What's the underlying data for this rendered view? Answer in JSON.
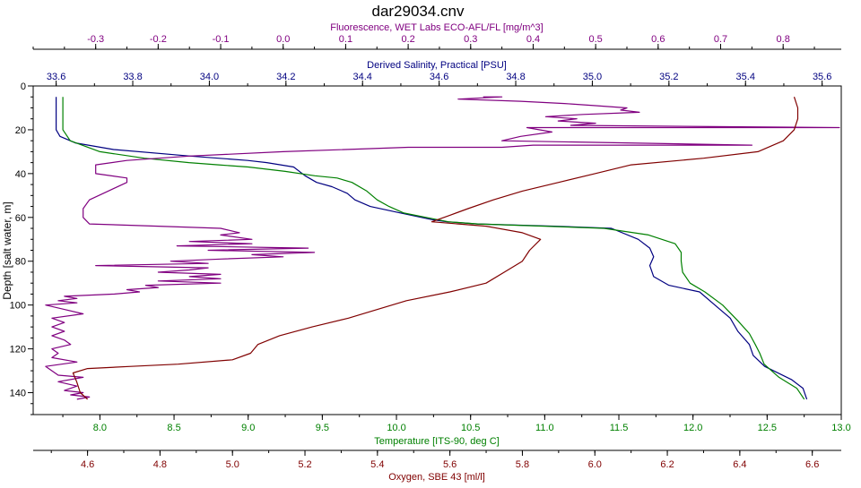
{
  "chart_data": {
    "type": "line",
    "title": "dar29034.cnv",
    "ylabel": "Depth [salt water, m]",
    "y_reversed": true,
    "ylim": [
      0,
      150
    ],
    "y_ticks": [
      0,
      20,
      40,
      60,
      80,
      100,
      120,
      140
    ],
    "grid": false,
    "axes": [
      {
        "id": "fluor",
        "position": "top-1",
        "label": "Fluorescence, WET Labs ECO-AFL/FL [mg/m^3]",
        "color": "#800080",
        "range": [
          -0.4,
          0.893
        ],
        "ticks": [
          -0.3,
          -0.2,
          -0.1,
          0.0,
          0.1,
          0.2,
          0.3,
          0.4,
          0.5,
          0.6,
          0.7,
          0.8
        ],
        "tick_labels": [
          "-0.3",
          "-0.2",
          "-0.1",
          "0.0",
          "0.1",
          "0.2",
          "0.3",
          "0.4",
          "0.5",
          "0.6",
          "0.7",
          "0.8"
        ]
      },
      {
        "id": "sal",
        "position": "top-2",
        "label": "Derived Salinity, Practical [PSU]",
        "color": "#000080",
        "range": [
          33.54,
          35.65
        ],
        "ticks": [
          33.6,
          33.8,
          34.0,
          34.2,
          34.4,
          34.6,
          34.8,
          35.0,
          35.2,
          35.4,
          35.6
        ],
        "tick_labels": [
          "33.6",
          "33.8",
          "34.0",
          "34.2",
          "34.4",
          "34.6",
          "34.8",
          "35.0",
          "35.2",
          "35.4",
          "35.6"
        ]
      },
      {
        "id": "temp",
        "position": "bottom-1",
        "label": "Temperature [ITS-90, deg C]",
        "color": "#008000",
        "range": [
          7.55,
          13.0
        ],
        "ticks": [
          8.0,
          8.5,
          9.0,
          9.5,
          10.0,
          10.5,
          11.0,
          11.5,
          12.0,
          12.5,
          13.0
        ],
        "tick_labels": [
          "8.0",
          "8.5",
          "9.0",
          "9.5",
          "10.0",
          "10.5",
          "11.0",
          "11.5",
          "12.0",
          "12.5",
          "13.0"
        ]
      },
      {
        "id": "oxy",
        "position": "bottom-2",
        "label": "Oxygen, SBE 43 [ml/l]",
        "color": "#800000",
        "range": [
          4.45,
          6.68
        ],
        "ticks": [
          4.6,
          4.8,
          5.0,
          5.2,
          5.4,
          5.6,
          5.8,
          6.0,
          6.2,
          6.4,
          6.6
        ],
        "tick_labels": [
          "4.6",
          "4.8",
          "5.0",
          "5.2",
          "5.4",
          "5.6",
          "5.8",
          "6.0",
          "6.2",
          "6.4",
          "6.6"
        ]
      }
    ],
    "series": [
      {
        "name": "Derived Salinity, Practical [PSU]",
        "axis": "sal",
        "color": "#000080",
        "points": [
          [
            33.6,
            5
          ],
          [
            33.6,
            20
          ],
          [
            33.61,
            23
          ],
          [
            33.65,
            26
          ],
          [
            33.75,
            29
          ],
          [
            33.95,
            32
          ],
          [
            34.1,
            34
          ],
          [
            34.15,
            35
          ],
          [
            34.22,
            37
          ],
          [
            34.25,
            41
          ],
          [
            34.28,
            44
          ],
          [
            34.32,
            46
          ],
          [
            34.36,
            49
          ],
          [
            34.38,
            52
          ],
          [
            34.42,
            55
          ],
          [
            34.5,
            58
          ],
          [
            34.58,
            61
          ],
          [
            34.62,
            62
          ],
          [
            34.7,
            63
          ],
          [
            34.9,
            64
          ],
          [
            35.05,
            65
          ],
          [
            35.12,
            70
          ],
          [
            35.15,
            74
          ],
          [
            35.16,
            78
          ],
          [
            35.15,
            82
          ],
          [
            35.16,
            87
          ],
          [
            35.2,
            91
          ],
          [
            35.28,
            94
          ],
          [
            35.32,
            100
          ],
          [
            35.36,
            106
          ],
          [
            35.38,
            112
          ],
          [
            35.41,
            118
          ],
          [
            35.42,
            123
          ],
          [
            35.45,
            128
          ],
          [
            35.52,
            134
          ],
          [
            35.55,
            138
          ],
          [
            35.56,
            143
          ]
        ]
      },
      {
        "name": "Temperature [ITS-90, deg C]",
        "axis": "temp",
        "color": "#008000",
        "points": [
          [
            7.75,
            5
          ],
          [
            7.75,
            20
          ],
          [
            7.8,
            25
          ],
          [
            8.0,
            30
          ],
          [
            8.3,
            33
          ],
          [
            8.6,
            35
          ],
          [
            8.8,
            36
          ],
          [
            9.0,
            37
          ],
          [
            9.25,
            39
          ],
          [
            9.45,
            41
          ],
          [
            9.6,
            42
          ],
          [
            9.7,
            44
          ],
          [
            9.8,
            48
          ],
          [
            9.87,
            52
          ],
          [
            9.95,
            55
          ],
          [
            10.05,
            58
          ],
          [
            10.2,
            60
          ],
          [
            10.35,
            62
          ],
          [
            10.55,
            63
          ],
          [
            11.0,
            64
          ],
          [
            11.4,
            65
          ],
          [
            11.7,
            68
          ],
          [
            11.88,
            72
          ],
          [
            11.92,
            76
          ],
          [
            11.92,
            80
          ],
          [
            11.93,
            85
          ],
          [
            11.98,
            90
          ],
          [
            12.08,
            94
          ],
          [
            12.2,
            100
          ],
          [
            12.3,
            107
          ],
          [
            12.38,
            113
          ],
          [
            12.42,
            118
          ],
          [
            12.45,
            122
          ],
          [
            12.48,
            127
          ],
          [
            12.58,
            133
          ],
          [
            12.7,
            138
          ],
          [
            12.75,
            143
          ]
        ]
      },
      {
        "name": "Fluorescence, WET Labs ECO-AFL/FL [mg/m^3]",
        "axis": "fluor",
        "color": "#800080",
        "points": [
          [
            0.32,
            5
          ],
          [
            0.35,
            5
          ],
          [
            0.28,
            6
          ],
          [
            0.38,
            7
          ],
          [
            0.45,
            8
          ],
          [
            0.5,
            9
          ],
          [
            0.55,
            10
          ],
          [
            0.54,
            11
          ],
          [
            0.57,
            12
          ],
          [
            0.48,
            13
          ],
          [
            0.42,
            14
          ],
          [
            0.47,
            15
          ],
          [
            0.44,
            16
          ],
          [
            0.5,
            17
          ],
          [
            0.46,
            18
          ],
          [
            0.89,
            19
          ],
          [
            0.39,
            19
          ],
          [
            0.43,
            21
          ],
          [
            0.38,
            23
          ],
          [
            0.35,
            25
          ],
          [
            0.75,
            27
          ],
          [
            0.4,
            27
          ],
          [
            0.35,
            28
          ],
          [
            0.2,
            28
          ],
          [
            0.0,
            30
          ],
          [
            -0.15,
            32
          ],
          [
            -0.25,
            34
          ],
          [
            -0.3,
            36
          ],
          [
            -0.3,
            38
          ],
          [
            -0.3,
            40
          ],
          [
            -0.25,
            42
          ],
          [
            -0.25,
            44
          ],
          [
            -0.28,
            48
          ],
          [
            -0.31,
            52
          ],
          [
            -0.32,
            56
          ],
          [
            -0.32,
            60
          ],
          [
            -0.31,
            63
          ],
          [
            -0.2,
            64
          ],
          [
            -0.1,
            65
          ],
          [
            -0.07,
            67
          ],
          [
            -0.1,
            68
          ],
          [
            -0.05,
            70
          ],
          [
            -0.15,
            71
          ],
          [
            -0.05,
            72
          ],
          [
            -0.17,
            73
          ],
          [
            0.04,
            74
          ],
          [
            -0.12,
            75
          ],
          [
            0.05,
            76
          ],
          [
            -0.05,
            77
          ],
          [
            0.0,
            78
          ],
          [
            -0.1,
            79
          ],
          [
            -0.18,
            80
          ],
          [
            -0.12,
            81
          ],
          [
            -0.3,
            82
          ],
          [
            -0.12,
            83
          ],
          [
            -0.15,
            84
          ],
          [
            -0.2,
            85
          ],
          [
            -0.1,
            86
          ],
          [
            -0.15,
            87
          ],
          [
            -0.1,
            88
          ],
          [
            -0.2,
            89
          ],
          [
            -0.1,
            90
          ],
          [
            -0.22,
            91
          ],
          [
            -0.2,
            92
          ],
          [
            -0.25,
            93
          ],
          [
            -0.23,
            94
          ],
          [
            -0.27,
            95
          ],
          [
            -0.35,
            96
          ],
          [
            -0.33,
            97
          ],
          [
            -0.36,
            98
          ],
          [
            -0.33,
            99
          ],
          [
            -0.38,
            100
          ],
          [
            -0.35,
            102
          ],
          [
            -0.32,
            104
          ],
          [
            -0.37,
            106
          ],
          [
            -0.35,
            108
          ],
          [
            -0.37,
            110
          ],
          [
            -0.35,
            112
          ],
          [
            -0.37,
            114
          ],
          [
            -0.35,
            116
          ],
          [
            -0.34,
            118
          ],
          [
            -0.37,
            120
          ],
          [
            -0.36,
            122
          ],
          [
            -0.37,
            124
          ],
          [
            -0.33,
            126
          ],
          [
            -0.38,
            128
          ],
          [
            -0.37,
            130
          ],
          [
            -0.36,
            132
          ],
          [
            -0.32,
            133
          ],
          [
            -0.36,
            135
          ],
          [
            -0.33,
            137
          ],
          [
            -0.35,
            139
          ],
          [
            -0.32,
            140
          ],
          [
            -0.34,
            141
          ],
          [
            -0.31,
            142
          ],
          [
            -0.33,
            143
          ]
        ]
      },
      {
        "name": "Oxygen, SBE 43 [ml/l]",
        "axis": "oxy",
        "color": "#800000",
        "points": [
          [
            6.55,
            5
          ],
          [
            6.56,
            10
          ],
          [
            6.56,
            15
          ],
          [
            6.55,
            20
          ],
          [
            6.52,
            25
          ],
          [
            6.45,
            30
          ],
          [
            6.3,
            33
          ],
          [
            6.1,
            36
          ],
          [
            6.0,
            40
          ],
          [
            5.9,
            44
          ],
          [
            5.8,
            48
          ],
          [
            5.72,
            52
          ],
          [
            5.65,
            56
          ],
          [
            5.6,
            59
          ],
          [
            5.55,
            62
          ],
          [
            5.7,
            64
          ],
          [
            5.8,
            67
          ],
          [
            5.85,
            70
          ],
          [
            5.82,
            75
          ],
          [
            5.8,
            80
          ],
          [
            5.75,
            85
          ],
          [
            5.7,
            90
          ],
          [
            5.6,
            94
          ],
          [
            5.48,
            98
          ],
          [
            5.4,
            102
          ],
          [
            5.32,
            106
          ],
          [
            5.22,
            110
          ],
          [
            5.13,
            114
          ],
          [
            5.07,
            118
          ],
          [
            5.05,
            122
          ],
          [
            5.0,
            125
          ],
          [
            4.85,
            127
          ],
          [
            4.72,
            128
          ],
          [
            4.6,
            129
          ],
          [
            4.56,
            131
          ],
          [
            4.57,
            135
          ],
          [
            4.58,
            140
          ],
          [
            4.6,
            143
          ]
        ]
      }
    ]
  }
}
